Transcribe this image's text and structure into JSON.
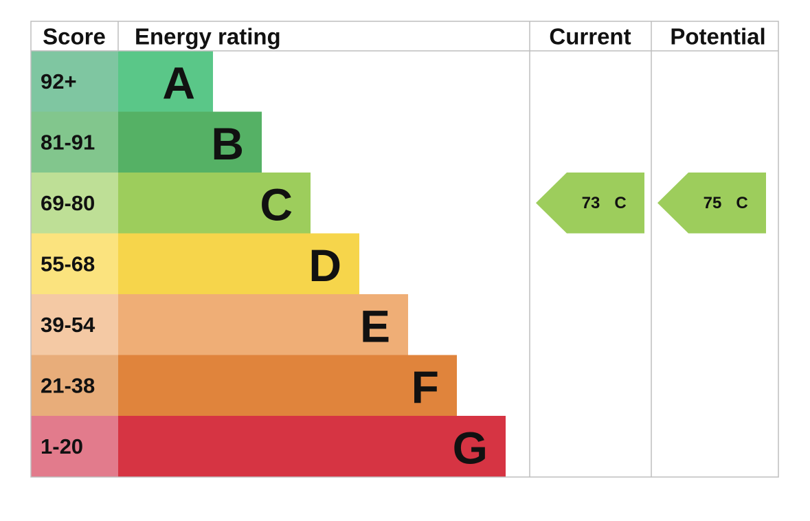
{
  "headers": {
    "score": "Score",
    "energy_rating": "Energy rating",
    "current": "Current",
    "potential": "Potential"
  },
  "rows": [
    {
      "score": "92+",
      "rating": "A"
    },
    {
      "score": "81-91",
      "rating": "B"
    },
    {
      "score": "69-80",
      "rating": "C"
    },
    {
      "score": "55-68",
      "rating": "D"
    },
    {
      "score": "39-54",
      "rating": "E"
    },
    {
      "score": "21-38",
      "rating": "F"
    },
    {
      "score": "1-20",
      "rating": "G"
    }
  ],
  "current": {
    "score": 73,
    "rating": "C"
  },
  "potential": {
    "score": 75,
    "rating": "C"
  }
}
